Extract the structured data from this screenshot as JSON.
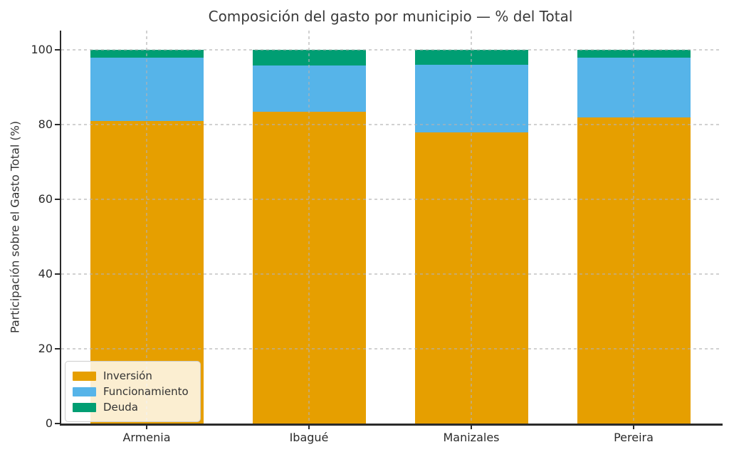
{
  "chart_data": {
    "type": "bar",
    "stacked": true,
    "title": "Composición del gasto por municipio — % del Total",
    "ylabel": "Participación sobre el Gasto Total (%)",
    "xlabel": "",
    "categories": [
      "Armenia",
      "Ibagué",
      "Manizales",
      "Pereira"
    ],
    "series": [
      {
        "name": "Inversión",
        "color": "#E69F00",
        "values": [
          81.0,
          83.4,
          78.0,
          82.0
        ]
      },
      {
        "name": "Funcionamiento",
        "color": "#56B4E9",
        "values": [
          17.0,
          12.4,
          18.0,
          16.0
        ]
      },
      {
        "name": "Deuda",
        "color": "#009E73",
        "values": [
          2.0,
          4.2,
          4.0,
          2.0
        ]
      }
    ],
    "ylim": [
      0,
      105
    ],
    "yticks": [
      0,
      20,
      40,
      60,
      80,
      100
    ],
    "grid": "dashed, both axes, drawn over bars",
    "legend_position": "lower left",
    "colors": {
      "axis": "#2b2b2b",
      "grid": "#cfcfcf",
      "title_text": "#3a3a3a",
      "tick_text": "#2b2b2b",
      "legend_background": "rgba(255,255,255,0.82)",
      "legend_border": "#cccccc",
      "background": "#ffffff"
    }
  }
}
